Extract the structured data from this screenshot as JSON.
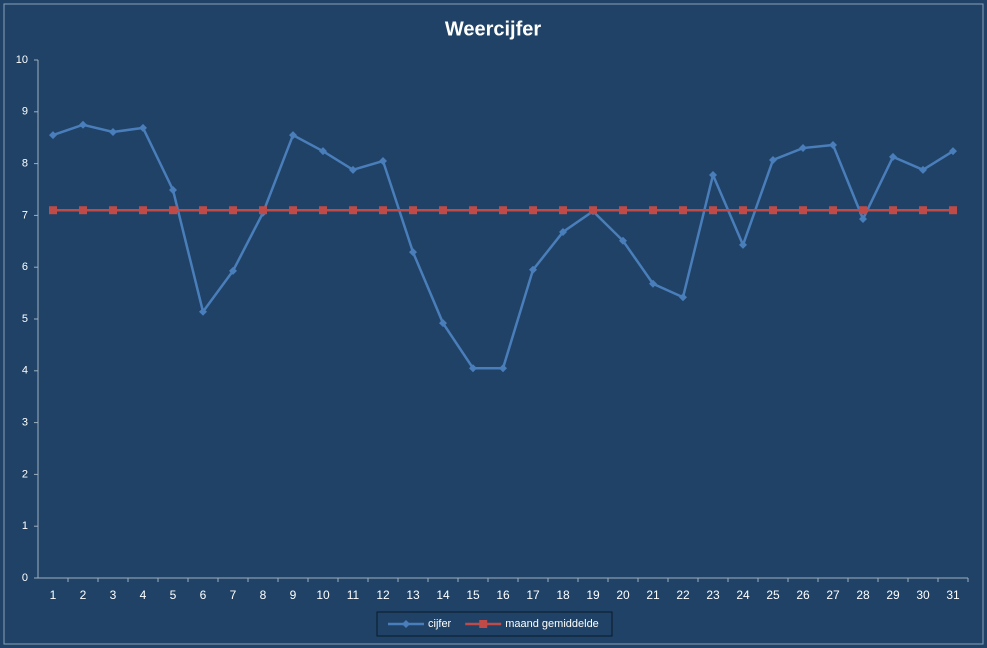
{
  "chart_data": {
    "type": "line",
    "title": "Weercijfer",
    "categories": [
      1,
      2,
      3,
      4,
      5,
      6,
      7,
      8,
      9,
      10,
      11,
      12,
      13,
      14,
      15,
      16,
      17,
      18,
      19,
      20,
      21,
      22,
      23,
      24,
      25,
      26,
      27,
      28,
      29,
      30,
      31
    ],
    "series": [
      {
        "name": "cijfer",
        "color": "#4a7ebb",
        "marker": "diamond",
        "values": [
          8.55,
          8.75,
          8.61,
          8.69,
          7.49,
          5.14,
          5.93,
          7.05,
          8.55,
          8.24,
          7.88,
          8.05,
          6.29,
          4.92,
          4.05,
          4.05,
          5.95,
          6.68,
          7.08,
          6.51,
          5.68,
          5.42,
          7.78,
          6.43,
          8.07,
          8.3,
          8.36,
          6.93,
          8.13,
          7.88,
          8.24
        ]
      },
      {
        "name": "maand gemiddelde",
        "color": "#be4b48",
        "marker": "square",
        "values": [
          7.1,
          7.1,
          7.1,
          7.1,
          7.1,
          7.1,
          7.1,
          7.1,
          7.1,
          7.1,
          7.1,
          7.1,
          7.1,
          7.1,
          7.1,
          7.1,
          7.1,
          7.1,
          7.1,
          7.1,
          7.1,
          7.1,
          7.1,
          7.1,
          7.1,
          7.1,
          7.1,
          7.1,
          7.1,
          7.1,
          7.1
        ]
      }
    ],
    "ylim": [
      0,
      10
    ],
    "yticks": [
      0,
      1,
      2,
      3,
      4,
      5,
      6,
      7,
      8,
      9,
      10
    ],
    "grid": false,
    "legend": "bottom"
  }
}
